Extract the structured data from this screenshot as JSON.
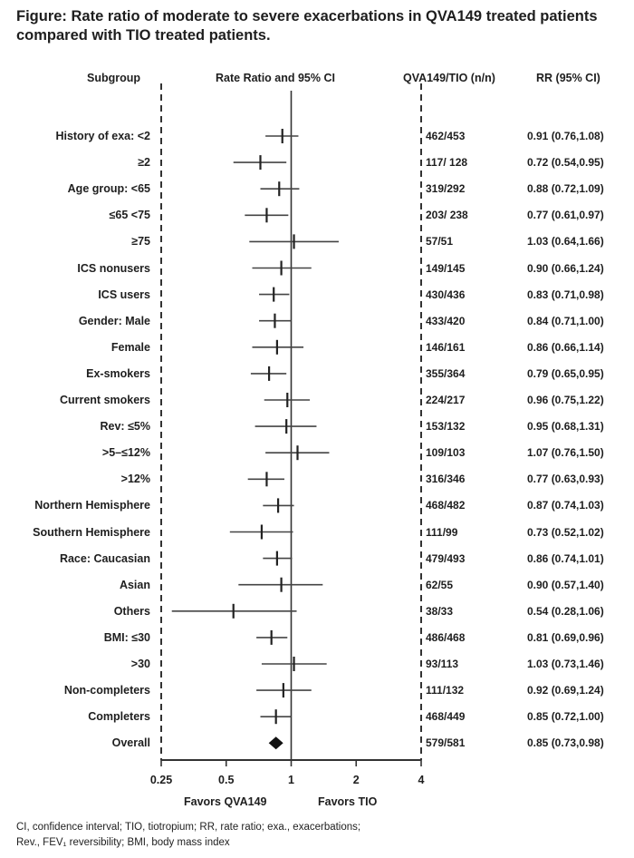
{
  "title": "Figure: Rate ratio of moderate to severe exacerbations in QVA149 treated patients compared with TIO treated patients.",
  "headers": {
    "subgroup": "Subgroup",
    "rate_ratio": "Rate Ratio and 95% CI",
    "nn": "QVA149/TIO (n/n)",
    "rr": "RR (95% CI)"
  },
  "favors": {
    "left": "Favors QVA149",
    "right": "Favors TIO"
  },
  "footnote_line1": "CI, confidence interval; TIO, tiotropium; RR, rate ratio; exa., exacerbations;",
  "footnote_line2": "Rev., FEV₁ reversibility; BMI, body mass index",
  "colors": {
    "text": "#1e1e1e",
    "line": "#333333",
    "ci": "#444444",
    "diamond": "#111111"
  },
  "chart_data": {
    "type": "forest",
    "xscale": "log",
    "xlim": [
      0.25,
      4
    ],
    "xticks": [
      0.25,
      0.5,
      1,
      2,
      4
    ],
    "xtick_labels": [
      "0.25",
      "0.5",
      "1",
      "2",
      "4"
    ],
    "reference_line": 1,
    "rows": [
      {
        "label": "History of exa: <2",
        "nn": "462/453",
        "rr_text": "0.91 (0.76,1.08)",
        "rr": 0.91,
        "lo": 0.76,
        "hi": 1.08
      },
      {
        "label": "≥2",
        "nn": "117/ 128",
        "rr_text": "0.72 (0.54,0.95)",
        "rr": 0.72,
        "lo": 0.54,
        "hi": 0.95
      },
      {
        "label": "Age group: <65",
        "nn": "319/292",
        "rr_text": "0.88 (0.72,1.09)",
        "rr": 0.88,
        "lo": 0.72,
        "hi": 1.09
      },
      {
        "label": "≤65 <75",
        "nn": "203/ 238",
        "rr_text": "0.77 (0.61,0.97)",
        "rr": 0.77,
        "lo": 0.61,
        "hi": 0.97
      },
      {
        "label": "≥75",
        "nn": "57/51",
        "rr_text": "1.03 (0.64,1.66)",
        "rr": 1.03,
        "lo": 0.64,
        "hi": 1.66
      },
      {
        "label": "ICS nonusers",
        "nn": "149/145",
        "rr_text": "0.90 (0.66,1.24)",
        "rr": 0.9,
        "lo": 0.66,
        "hi": 1.24
      },
      {
        "label": "ICS users",
        "nn": "430/436",
        "rr_text": "0.83 (0.71,0.98)",
        "rr": 0.83,
        "lo": 0.71,
        "hi": 0.98
      },
      {
        "label": "Gender: Male",
        "nn": "433/420",
        "rr_text": "0.84 (0.71,1.00)",
        "rr": 0.84,
        "lo": 0.71,
        "hi": 1.0
      },
      {
        "label": "Female",
        "nn": "146/161",
        "rr_text": "0.86 (0.66,1.14)",
        "rr": 0.86,
        "lo": 0.66,
        "hi": 1.14
      },
      {
        "label": "Ex-smokers",
        "nn": "355/364",
        "rr_text": "0.79 (0.65,0.95)",
        "rr": 0.79,
        "lo": 0.65,
        "hi": 0.95
      },
      {
        "label": "Current smokers",
        "nn": "224/217",
        "rr_text": "0.96 (0.75,1.22)",
        "rr": 0.96,
        "lo": 0.75,
        "hi": 1.22
      },
      {
        "label": "Rev: ≤5%",
        "nn": "153/132",
        "rr_text": "0.95 (0.68,1.31)",
        "rr": 0.95,
        "lo": 0.68,
        "hi": 1.31
      },
      {
        "label": ">5–≤12%",
        "nn": "109/103",
        "rr_text": "1.07 (0.76,1.50)",
        "rr": 1.07,
        "lo": 0.76,
        "hi": 1.5
      },
      {
        "label": ">12%",
        "nn": "316/346",
        "rr_text": "0.77 (0.63,0.93)",
        "rr": 0.77,
        "lo": 0.63,
        "hi": 0.93
      },
      {
        "label": "Northern Hemisphere",
        "nn": "468/482",
        "rr_text": "0.87 (0.74,1.03)",
        "rr": 0.87,
        "lo": 0.74,
        "hi": 1.03
      },
      {
        "label": "Southern Hemisphere",
        "nn": "111/99",
        "rr_text": "0.73 (0.52,1.02)",
        "rr": 0.73,
        "lo": 0.52,
        "hi": 1.02
      },
      {
        "label": "Race: Caucasian",
        "nn": "479/493",
        "rr_text": "0.86 (0.74,1.01)",
        "rr": 0.86,
        "lo": 0.74,
        "hi": 1.01
      },
      {
        "label": "Asian",
        "nn": "62/55",
        "rr_text": "0.90 (0.57,1.40)",
        "rr": 0.9,
        "lo": 0.57,
        "hi": 1.4
      },
      {
        "label": "Others",
        "nn": "38/33",
        "rr_text": "0.54 (0.28,1.06)",
        "rr": 0.54,
        "lo": 0.28,
        "hi": 1.06
      },
      {
        "label": "BMI: ≤30",
        "nn": "486/468",
        "rr_text": "0.81 (0.69,0.96)",
        "rr": 0.81,
        "lo": 0.69,
        "hi": 0.96
      },
      {
        "label": ">30",
        "nn": "93/113",
        "rr_text": "1.03 (0.73,1.46)",
        "rr": 1.03,
        "lo": 0.73,
        "hi": 1.46
      },
      {
        "label": "Non-completers",
        "nn": "111/132",
        "rr_text": "0.92 (0.69,1.24)",
        "rr": 0.92,
        "lo": 0.69,
        "hi": 1.24
      },
      {
        "label": "Completers",
        "nn": "468/449",
        "rr_text": "0.85 (0.72,1.00)",
        "rr": 0.85,
        "lo": 0.72,
        "hi": 1.0
      },
      {
        "label": "Overall",
        "nn": "579/581",
        "rr_text": "0.85 (0.73,0.98)",
        "rr": 0.85,
        "lo": 0.73,
        "hi": 0.98,
        "summary": true
      }
    ]
  }
}
